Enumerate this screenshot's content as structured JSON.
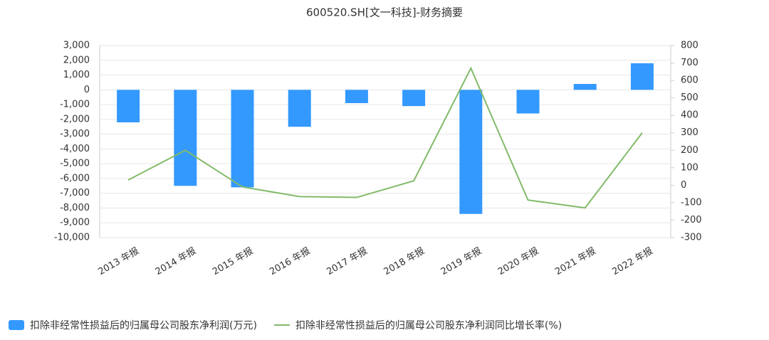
{
  "chart_data": {
    "type": "bar-line",
    "title": "600520.SH[文一科技]-财务摘要",
    "categories": [
      "2013 年报",
      "2014 年报",
      "2015 年报",
      "2016 年报",
      "2017 年报",
      "2018 年报",
      "2019 年报",
      "2020 年报",
      "2021 年报",
      "2022 年报"
    ],
    "series": [
      {
        "name": "扣除非经常性损益后的归属母公司股东净利润(万元)",
        "type": "bar",
        "color": "#3399ff",
        "axis": "y",
        "values": [
          -2200,
          -6500,
          -6600,
          -2500,
          -900,
          -1100,
          -8400,
          -1600,
          400,
          1800
        ]
      },
      {
        "name": "扣除非经常性损益后的归属母公司股东净利润同比增长率(%)",
        "type": "line",
        "color": "#82bb6a",
        "axis": "y2",
        "values": [
          30,
          200,
          -10,
          -65,
          -70,
          25,
          670,
          -85,
          -130,
          300
        ]
      }
    ],
    "ylim": [
      -10000,
      3000
    ],
    "yticks": [
      {
        "value": 3000,
        "label": "3,000"
      },
      {
        "value": 2000,
        "label": "2,000"
      },
      {
        "value": 1000,
        "label": "1,000"
      },
      0,
      {
        "value": -1000,
        "label": "-1,000"
      },
      {
        "value": -2000,
        "label": "-2,000"
      },
      {
        "value": -3000,
        "label": "-3,000"
      },
      {
        "value": -4000,
        "label": "-4,000"
      },
      {
        "value": -5000,
        "label": "-5,000"
      },
      {
        "value": -6000,
        "label": "-6,000"
      },
      {
        "value": -7000,
        "label": "-7,000"
      },
      {
        "value": -8000,
        "label": "-8,000"
      },
      {
        "value": -9000,
        "label": "-9,000"
      },
      {
        "value": -10000,
        "label": "-10,000"
      }
    ],
    "y2lim": [
      -300,
      800
    ],
    "y2ticks": [
      800,
      700,
      600,
      500,
      400,
      300,
      200,
      100,
      0,
      -100,
      -200,
      -300
    ],
    "grid": true
  }
}
